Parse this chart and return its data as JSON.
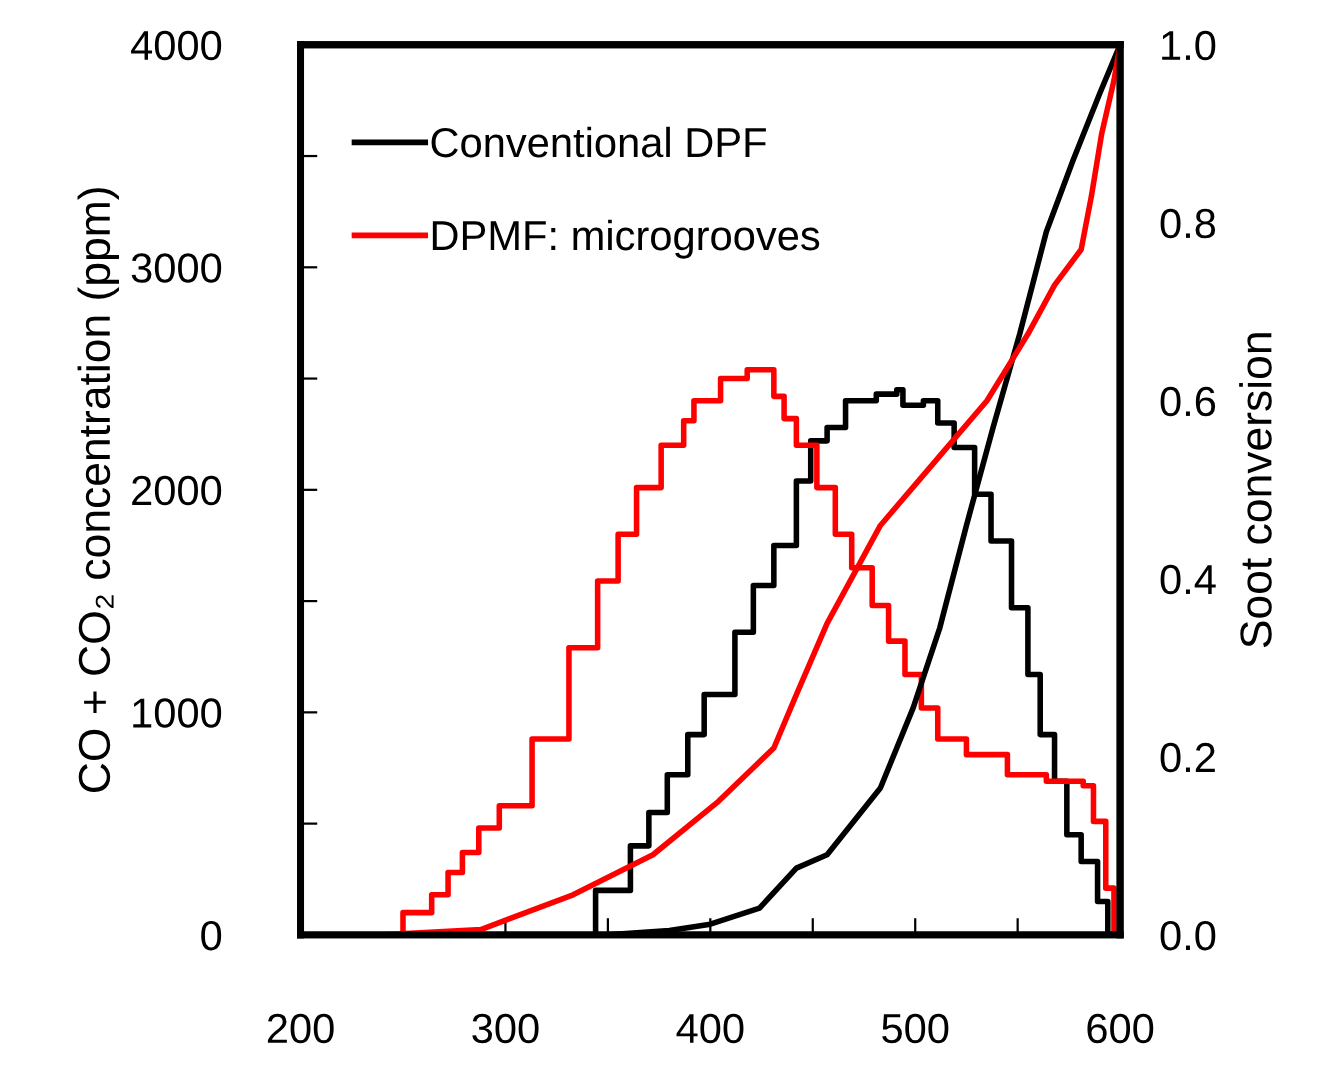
{
  "chart_data": {
    "type": "step",
    "ylabel": "CO + CO₂ concentration (ppm)",
    "y2label": "Soot conversion",
    "xlim": [
      200,
      600
    ],
    "xticks": [
      200,
      {
        "value": 250,
        "label": null
      },
      300,
      {
        "value": 350,
        "label": null
      },
      400,
      {
        "value": 450,
        "label": null
      },
      500,
      {
        "value": 550,
        "label": null
      },
      600
    ],
    "ylim": [
      0,
      4000
    ],
    "yticks": [
      0,
      {
        "value": 500,
        "label": null
      },
      1000,
      {
        "value": 1500,
        "label": null
      },
      2000,
      {
        "value": 2500,
        "label": null
      },
      3000,
      {
        "value": 3500,
        "label": null
      },
      4000
    ],
    "y2lim": [
      0,
      1
    ],
    "y2ticks": [
      {
        "value": 0,
        "label": "0.0"
      },
      {
        "value": 0.2,
        "label": "0.2"
      },
      {
        "value": 0.4,
        "label": "0.4"
      },
      {
        "value": 0.6,
        "label": "0.6"
      },
      {
        "value": 0.8,
        "label": "0.8"
      },
      {
        "value": 1,
        "label": "1.0"
      }
    ],
    "grid": false,
    "legend": "top left",
    "marker": "none",
    "line_style": "solid",
    "series": [
      {
        "name": "Conventional DPF",
        "color": "#000000",
        "x": [
          200,
          333,
          344,
          352,
          361,
          370,
          379,
          389,
          397,
          412,
          421,
          431,
          442,
          449,
          457,
          466,
          481,
          491,
          494,
          504,
          511,
          519,
          529,
          537,
          547,
          555,
          561,
          568,
          574,
          581,
          589,
          594,
          600
        ],
        "values": [
          0,
          0,
          200,
          200,
          400,
          550,
          720,
          900,
          1080,
          1360,
          1570,
          1750,
          2040,
          2220,
          2280,
          2400,
          2430,
          2450,
          2380,
          2400,
          2300,
          2190,
          1980,
          1770,
          1470,
          1170,
          900,
          690,
          450,
          330,
          150,
          0,
          0
        ]
      },
      {
        "name": "DPMF: microgrooves",
        "color": "#ff0000",
        "x": [
          200,
          240,
          250,
          264,
          272,
          279,
          287,
          297,
          313,
          331,
          345,
          355,
          364,
          376,
          387,
          392,
          405,
          418,
          431,
          436,
          442,
          452,
          461,
          469,
          479,
          487,
          495,
          503,
          511,
          525,
          545,
          564,
          582,
          587,
          593,
          597,
          600
        ],
        "values": [
          0,
          0,
          100,
          180,
          280,
          370,
          480,
          580,
          880,
          1290,
          1590,
          1800,
          2010,
          2200,
          2310,
          2400,
          2500,
          2540,
          2420,
          2320,
          2200,
          2010,
          1800,
          1650,
          1480,
          1320,
          1170,
          1020,
          880,
          810,
          720,
          690,
          670,
          510,
          210,
          0,
          0
        ]
      },
      {
        "color": "#000000",
        "type": "line",
        "axis": "y2",
        "x": [
          350,
          380,
          400,
          424,
          442,
          457,
          483,
          499,
          512,
          525,
          538,
          551,
          564,
          577,
          590,
          600
        ],
        "values": [
          0,
          0.005,
          0.012,
          0.03,
          0.075,
          0.09,
          0.165,
          0.255,
          0.345,
          0.46,
          0.57,
          0.675,
          0.79,
          0.87,
          0.945,
          1
        ]
      },
      {
        "color": "#ff0000",
        "type": "line",
        "axis": "y2",
        "x": [
          240,
          288,
          333,
          372,
          404,
          431,
          442,
          457,
          483,
          509,
          535,
          555,
          568,
          581,
          586,
          591,
          597,
          600
        ],
        "values": [
          0,
          0.006,
          0.045,
          0.09,
          0.15,
          0.21,
          0.27,
          0.35,
          0.46,
          0.53,
          0.6,
          0.675,
          0.73,
          0.77,
          0.83,
          0.9,
          0.96,
          1
        ]
      }
    ]
  }
}
